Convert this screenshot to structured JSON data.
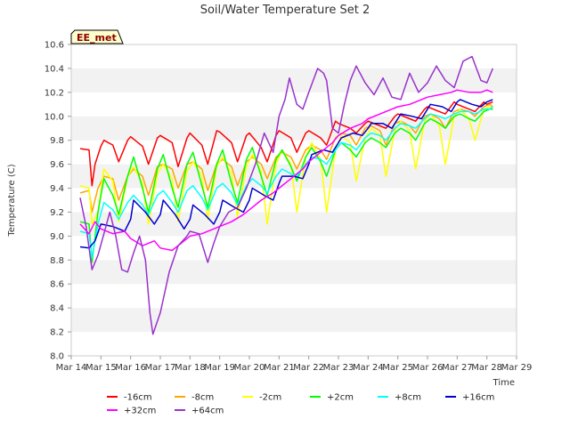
{
  "chart_data": {
    "type": "line",
    "title": "Soil/Water Temperature Set 2",
    "xlabel": "Time",
    "ylabel": "Temperature (C)",
    "station_badge": "EE_met",
    "ylim": [
      8.0,
      10.6
    ],
    "yticks": [
      "8.0",
      "8.2",
      "8.4",
      "8.6",
      "8.8",
      "9.0",
      "9.2",
      "9.4",
      "9.6",
      "9.8",
      "10.0",
      "10.2",
      "10.4",
      "10.6"
    ],
    "xticks": [
      "Mar 14",
      "Mar 15",
      "Mar 16",
      "Mar 17",
      "Mar 18",
      "Mar 19",
      "Mar 20",
      "Mar 21",
      "Mar 22",
      "Mar 23",
      "Mar 24",
      "Mar 25",
      "Mar 26",
      "Mar 27",
      "Mar 28",
      "Mar 29"
    ],
    "xlim_days": [
      0,
      15
    ],
    "grid": "horizontal alternating bands",
    "legend_position": "bottom",
    "series": [
      {
        "name": "-16cm",
        "color": "#ff0000",
        "x": [
          0.3,
          0.6,
          0.7,
          0.8,
          1.0,
          1.1,
          1.4,
          1.6,
          1.9,
          2.0,
          2.4,
          2.6,
          2.9,
          3.0,
          3.4,
          3.6,
          3.9,
          4.0,
          4.4,
          4.6,
          4.9,
          5.0,
          5.4,
          5.6,
          5.9,
          6.0,
          6.4,
          6.6,
          6.9,
          7.0,
          7.4,
          7.6,
          7.9,
          8.0,
          8.4,
          8.6,
          8.9,
          9.0,
          9.4,
          9.6,
          9.9,
          10.0,
          10.4,
          10.6,
          10.9,
          11.0,
          11.4,
          11.6,
          11.9,
          12.0,
          12.4,
          12.6,
          12.9,
          13.0,
          13.4,
          13.6,
          13.9,
          14.0,
          14.2
        ],
        "y": [
          9.73,
          9.72,
          9.42,
          9.6,
          9.75,
          9.8,
          9.76,
          9.62,
          9.8,
          9.83,
          9.75,
          9.6,
          9.82,
          9.84,
          9.78,
          9.58,
          9.82,
          9.86,
          9.76,
          9.6,
          9.88,
          9.87,
          9.78,
          9.62,
          9.84,
          9.86,
          9.74,
          9.62,
          9.84,
          9.88,
          9.82,
          9.7,
          9.86,
          9.88,
          9.82,
          9.76,
          9.96,
          9.94,
          9.9,
          9.86,
          9.94,
          9.96,
          9.92,
          9.9,
          10.0,
          10.02,
          9.98,
          9.96,
          10.06,
          10.08,
          10.04,
          10.02,
          10.12,
          10.1,
          10.06,
          10.04,
          10.12,
          10.1,
          10.12
        ]
      },
      {
        "name": "-8cm",
        "color": "#ffa500",
        "x": [
          0.3,
          0.6,
          0.7,
          0.9,
          1.1,
          1.4,
          1.6,
          1.9,
          2.1,
          2.4,
          2.6,
          2.9,
          3.1,
          3.4,
          3.6,
          3.9,
          4.1,
          4.4,
          4.6,
          4.9,
          5.1,
          5.4,
          5.6,
          5.9,
          6.1,
          6.4,
          6.6,
          6.9,
          7.1,
          7.4,
          7.6,
          7.9,
          8.1,
          8.4,
          8.6,
          8.9,
          9.1,
          9.4,
          9.6,
          9.9,
          10.1,
          10.4,
          10.6,
          10.9,
          11.1,
          11.4,
          11.6,
          11.9,
          12.1,
          12.4,
          12.6,
          12.9,
          13.1,
          13.4,
          13.6,
          13.9,
          14.1,
          14.2
        ],
        "y": [
          9.36,
          9.38,
          9.2,
          9.4,
          9.5,
          9.48,
          9.3,
          9.5,
          9.56,
          9.5,
          9.34,
          9.58,
          9.6,
          9.56,
          9.4,
          9.6,
          9.62,
          9.56,
          9.38,
          9.6,
          9.64,
          9.58,
          9.42,
          9.62,
          9.66,
          9.6,
          9.48,
          9.66,
          9.7,
          9.66,
          9.56,
          9.72,
          9.76,
          9.72,
          9.64,
          9.82,
          9.86,
          9.84,
          9.76,
          9.9,
          9.92,
          9.88,
          9.76,
          9.94,
          9.96,
          9.92,
          9.86,
          10.0,
          10.02,
          9.98,
          9.9,
          10.04,
          10.06,
          10.04,
          10.0,
          10.08,
          10.1,
          10.08
        ]
      },
      {
        "name": "-2cm",
        "color": "#ffff00",
        "x": [
          0.3,
          0.6,
          0.7,
          0.9,
          1.1,
          1.4,
          1.6,
          1.9,
          2.1,
          2.4,
          2.6,
          2.9,
          3.1,
          3.4,
          3.6,
          3.9,
          4.1,
          4.4,
          4.6,
          4.9,
          5.1,
          5.4,
          5.6,
          5.9,
          6.1,
          6.4,
          6.6,
          6.9,
          7.1,
          7.4,
          7.6,
          7.9,
          8.1,
          8.4,
          8.6,
          8.9,
          9.1,
          9.4,
          9.6,
          9.9,
          10.1,
          10.4,
          10.6,
          10.9,
          11.1,
          11.4,
          11.6,
          11.9,
          12.1,
          12.4,
          12.6,
          12.9,
          13.1,
          13.4,
          13.6,
          13.9,
          14.1,
          14.2
        ],
        "y": [
          9.42,
          9.4,
          9.1,
          9.2,
          9.56,
          9.46,
          9.12,
          9.5,
          9.58,
          9.44,
          9.1,
          9.52,
          9.6,
          9.48,
          9.12,
          9.54,
          9.62,
          9.5,
          9.14,
          9.58,
          9.66,
          9.52,
          9.16,
          9.58,
          9.68,
          9.54,
          9.1,
          9.6,
          9.72,
          9.6,
          9.2,
          9.66,
          9.78,
          9.64,
          9.2,
          9.72,
          9.84,
          9.78,
          9.46,
          9.82,
          9.9,
          9.84,
          9.5,
          9.88,
          9.96,
          9.88,
          9.56,
          9.96,
          10.02,
          9.92,
          9.6,
          10.0,
          10.06,
          9.98,
          9.8,
          10.06,
          10.08,
          10.06
        ]
      },
      {
        "name": "+2cm",
        "color": "#00ff00",
        "x": [
          0.3,
          0.6,
          0.7,
          0.9,
          1.1,
          1.4,
          1.6,
          1.9,
          2.1,
          2.4,
          2.6,
          2.9,
          3.1,
          3.4,
          3.6,
          3.9,
          4.1,
          4.4,
          4.6,
          4.9,
          5.1,
          5.4,
          5.6,
          5.9,
          6.1,
          6.4,
          6.6,
          6.9,
          7.1,
          7.4,
          7.6,
          7.9,
          8.1,
          8.4,
          8.6,
          8.9,
          9.1,
          9.4,
          9.6,
          9.9,
          10.1,
          10.4,
          10.6,
          10.9,
          11.1,
          11.4,
          11.6,
          11.9,
          12.1,
          12.4,
          12.6,
          12.9,
          13.1,
          13.4,
          13.6,
          13.9,
          14.1,
          14.2
        ],
        "y": [
          9.12,
          9.1,
          8.78,
          9.2,
          9.48,
          9.34,
          9.18,
          9.5,
          9.66,
          9.4,
          9.2,
          9.56,
          9.68,
          9.4,
          9.24,
          9.6,
          9.7,
          9.42,
          9.24,
          9.6,
          9.72,
          9.44,
          9.28,
          9.64,
          9.74,
          9.5,
          9.34,
          9.64,
          9.72,
          9.58,
          9.46,
          9.66,
          9.74,
          9.62,
          9.5,
          9.72,
          9.78,
          9.72,
          9.66,
          9.78,
          9.82,
          9.78,
          9.74,
          9.86,
          9.9,
          9.86,
          9.8,
          9.94,
          9.98,
          9.94,
          9.9,
          10.0,
          10.02,
          9.98,
          9.96,
          10.04,
          10.06,
          10.06
        ]
      },
      {
        "name": "+8cm",
        "color": "#00ffff",
        "x": [
          0.3,
          0.6,
          0.7,
          0.9,
          1.1,
          1.4,
          1.6,
          1.9,
          2.1,
          2.4,
          2.6,
          2.9,
          3.1,
          3.4,
          3.6,
          3.9,
          4.1,
          4.4,
          4.6,
          4.9,
          5.1,
          5.4,
          5.6,
          5.9,
          6.1,
          6.4,
          6.6,
          6.9,
          7.1,
          7.4,
          7.6,
          7.9,
          8.1,
          8.4,
          8.6,
          8.9,
          9.1,
          9.4,
          9.6,
          9.9,
          10.1,
          10.4,
          10.6,
          10.9,
          11.1,
          11.4,
          11.6,
          11.9,
          12.1,
          12.4,
          12.6,
          12.9,
          13.1,
          13.4,
          13.6,
          13.9,
          14.1,
          14.2
        ],
        "y": [
          9.04,
          9.02,
          8.82,
          9.1,
          9.28,
          9.22,
          9.14,
          9.28,
          9.34,
          9.26,
          9.18,
          9.34,
          9.38,
          9.28,
          9.2,
          9.38,
          9.42,
          9.32,
          9.22,
          9.4,
          9.44,
          9.36,
          9.26,
          9.42,
          9.48,
          9.42,
          9.36,
          9.5,
          9.56,
          9.52,
          9.5,
          9.6,
          9.66,
          9.64,
          9.6,
          9.72,
          9.78,
          9.76,
          9.72,
          9.82,
          9.86,
          9.84,
          9.8,
          9.9,
          9.94,
          9.92,
          9.9,
          9.98,
          10.02,
          10.0,
          9.98,
          10.02,
          10.04,
          10.04,
          10.02,
          10.06,
          10.06,
          10.08
        ]
      },
      {
        "name": "+16cm",
        "color": "#0000cd",
        "x": [
          0.3,
          0.6,
          0.8,
          1.0,
          1.4,
          1.8,
          2.0,
          2.1,
          2.5,
          2.8,
          3.0,
          3.1,
          3.5,
          3.8,
          4.0,
          4.1,
          4.5,
          4.8,
          5.0,
          5.1,
          5.5,
          5.8,
          6.0,
          6.1,
          6.5,
          6.8,
          7.0,
          7.1,
          7.5,
          7.8,
          8.0,
          8.1,
          8.5,
          8.8,
          9.0,
          9.1,
          9.5,
          9.8,
          10.0,
          10.1,
          10.5,
          10.8,
          11.0,
          11.1,
          11.5,
          11.8,
          12.0,
          12.1,
          12.5,
          12.8,
          13.0,
          13.1,
          13.5,
          13.8,
          14.0,
          14.2
        ],
        "y": [
          8.91,
          8.9,
          8.96,
          9.1,
          9.08,
          9.04,
          9.14,
          9.3,
          9.2,
          9.1,
          9.18,
          9.3,
          9.18,
          9.06,
          9.14,
          9.26,
          9.18,
          9.1,
          9.2,
          9.3,
          9.24,
          9.2,
          9.3,
          9.4,
          9.34,
          9.3,
          9.44,
          9.5,
          9.5,
          9.48,
          9.6,
          9.68,
          9.72,
          9.7,
          9.78,
          9.82,
          9.86,
          9.84,
          9.9,
          9.94,
          9.94,
          9.9,
          9.98,
          10.02,
          10.0,
          9.98,
          10.06,
          10.1,
          10.08,
          10.04,
          10.12,
          10.14,
          10.1,
          10.08,
          10.12,
          10.14
        ]
      },
      {
        "name": "+32cm",
        "color": "#ff00ff",
        "x": [
          0.3,
          0.6,
          0.8,
          1.0,
          1.4,
          1.8,
          2.0,
          2.4,
          2.8,
          3.0,
          3.4,
          3.8,
          4.0,
          4.4,
          4.8,
          5.0,
          5.4,
          5.8,
          6.0,
          6.4,
          6.8,
          7.0,
          7.4,
          7.8,
          8.0,
          8.4,
          8.8,
          9.0,
          9.4,
          9.8,
          10.0,
          10.4,
          10.8,
          11.0,
          11.4,
          11.8,
          12.0,
          12.4,
          12.8,
          13.0,
          13.4,
          13.8,
          14.0,
          14.2
        ],
        "y": [
          9.1,
          9.02,
          9.12,
          9.06,
          9.02,
          9.04,
          8.98,
          8.92,
          8.96,
          8.9,
          8.88,
          8.96,
          9.0,
          9.02,
          9.06,
          9.08,
          9.12,
          9.18,
          9.22,
          9.3,
          9.36,
          9.4,
          9.48,
          9.56,
          9.62,
          9.7,
          9.78,
          9.84,
          9.9,
          9.94,
          9.98,
          10.02,
          10.06,
          10.08,
          10.1,
          10.14,
          10.16,
          10.18,
          10.2,
          10.22,
          10.2,
          10.2,
          10.22,
          10.2
        ]
      },
      {
        "name": "+64cm",
        "color": "#9932cc",
        "x": [
          0.3,
          0.5,
          0.7,
          0.9,
          1.1,
          1.3,
          1.5,
          1.7,
          1.9,
          2.1,
          2.3,
          2.5,
          2.65,
          2.75,
          3.0,
          3.3,
          3.6,
          3.9,
          4.0,
          4.3,
          4.6,
          4.8,
          5.0,
          5.3,
          5.6,
          5.9,
          6.2,
          6.5,
          6.8,
          7.0,
          7.2,
          7.35,
          7.6,
          7.8,
          8.0,
          8.3,
          8.5,
          8.6,
          8.8,
          9.0,
          9.2,
          9.4,
          9.6,
          9.9,
          10.2,
          10.5,
          10.8,
          11.1,
          11.4,
          11.7,
          12.0,
          12.3,
          12.6,
          12.9,
          13.2,
          13.5,
          13.8,
          14.0,
          14.2
        ],
        "y": [
          9.32,
          9.08,
          8.72,
          8.84,
          9.02,
          9.2,
          9.0,
          8.72,
          8.7,
          8.86,
          9.0,
          8.8,
          8.36,
          8.18,
          8.36,
          8.7,
          8.92,
          9.0,
          9.04,
          9.02,
          8.78,
          8.94,
          9.08,
          9.2,
          9.24,
          9.4,
          9.6,
          9.86,
          9.7,
          10.0,
          10.14,
          10.32,
          10.1,
          10.06,
          10.2,
          10.4,
          10.36,
          10.3,
          9.9,
          9.86,
          10.1,
          10.3,
          10.42,
          10.28,
          10.18,
          10.32,
          10.16,
          10.14,
          10.36,
          10.2,
          10.28,
          10.42,
          10.3,
          10.24,
          10.46,
          10.5,
          10.3,
          10.28,
          10.4
        ]
      }
    ]
  }
}
